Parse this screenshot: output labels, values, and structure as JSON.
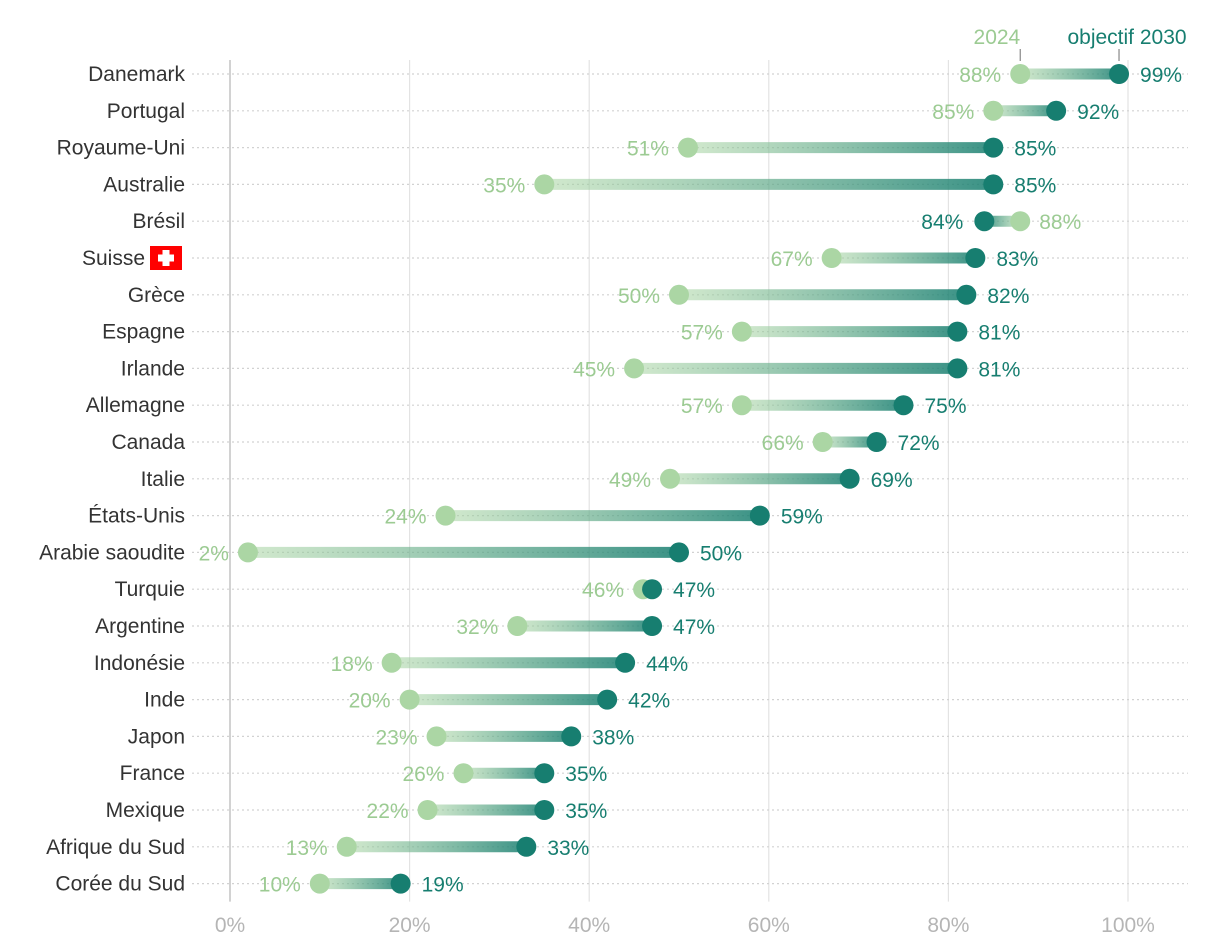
{
  "chart_data": {
    "type": "dumbbell",
    "title": "",
    "xlabel": "",
    "ylabel": "",
    "xlim": [
      0,
      100
    ],
    "x_ticks": [
      "0%",
      "20%",
      "40%",
      "60%",
      "80%",
      "100%"
    ],
    "grid": true,
    "legend_position": "top-right",
    "series": [
      {
        "name": "2024",
        "color": "#abd6a4"
      },
      {
        "name": "objectif 2030",
        "color": "#177e70"
      }
    ],
    "highlight": {
      "country": "Suisse",
      "icon": "swiss-flag-icon"
    },
    "countries": [
      {
        "name": "Danemark",
        "v2024": 88,
        "v2030": 99
      },
      {
        "name": "Portugal",
        "v2024": 85,
        "v2030": 92
      },
      {
        "name": "Royaume-Uni",
        "v2024": 51,
        "v2030": 85
      },
      {
        "name": "Australie",
        "v2024": 35,
        "v2030": 85
      },
      {
        "name": "Brésil",
        "v2024": 88,
        "v2030": 84
      },
      {
        "name": "Suisse",
        "v2024": 67,
        "v2030": 83
      },
      {
        "name": "Grèce",
        "v2024": 50,
        "v2030": 82
      },
      {
        "name": "Espagne",
        "v2024": 57,
        "v2030": 81
      },
      {
        "name": "Irlande",
        "v2024": 45,
        "v2030": 81
      },
      {
        "name": "Allemagne",
        "v2024": 57,
        "v2030": 75
      },
      {
        "name": "Canada",
        "v2024": 66,
        "v2030": 72
      },
      {
        "name": "Italie",
        "v2024": 49,
        "v2030": 69
      },
      {
        "name": "États-Unis",
        "v2024": 24,
        "v2030": 59
      },
      {
        "name": "Arabie saoudite",
        "v2024": 2,
        "v2030": 50
      },
      {
        "name": "Turquie",
        "v2024": 46,
        "v2030": 47
      },
      {
        "name": "Argentine",
        "v2024": 32,
        "v2030": 47
      },
      {
        "name": "Indonésie",
        "v2024": 18,
        "v2030": 44
      },
      {
        "name": "Inde",
        "v2024": 20,
        "v2030": 42
      },
      {
        "name": "Japon",
        "v2024": 23,
        "v2030": 38
      },
      {
        "name": "France",
        "v2024": 26,
        "v2030": 35
      },
      {
        "name": "Mexique",
        "v2024": 22,
        "v2030": 35
      },
      {
        "name": "Afrique du Sud",
        "v2024": 13,
        "v2030": 33
      },
      {
        "name": "Corée du Sud",
        "v2024": 10,
        "v2030": 19
      }
    ]
  }
}
